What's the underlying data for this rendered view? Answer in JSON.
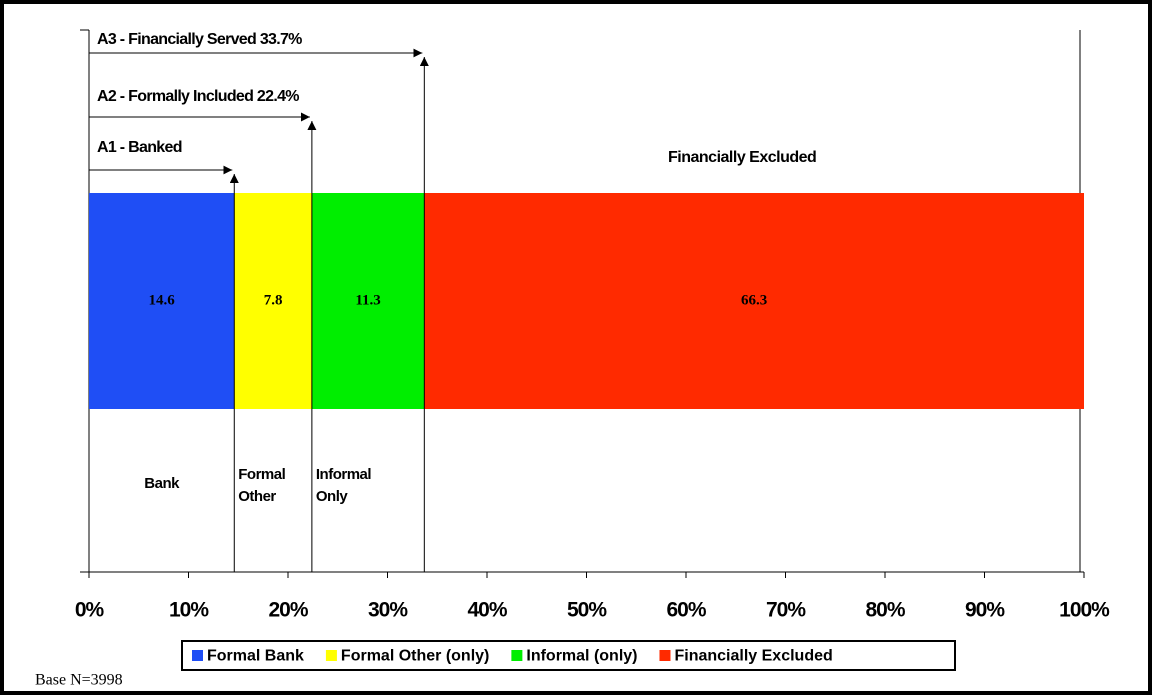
{
  "chart_data": {
    "type": "stacked-bar",
    "orientation": "horizontal",
    "series": [
      {
        "name": "Formal Bank",
        "color": "#1f4ef5",
        "values": [
          14.6
        ]
      },
      {
        "name": "Formal Other (only)",
        "color": "#ffff00",
        "values": [
          7.8
        ]
      },
      {
        "name": "Informal (only)",
        "color": "#00ee00",
        "values": [
          11.3
        ]
      },
      {
        "name": "Financially Excluded",
        "color": "#ff2a00",
        "values": [
          66.3
        ]
      }
    ],
    "segment_labels": [
      [
        "Bank"
      ],
      [
        "Formal",
        "Other"
      ],
      [
        "Informal",
        "Only"
      ],
      []
    ],
    "excluded_label": "Financially Excluded",
    "annotations": [
      {
        "text": "A1 - Banked",
        "upto": 1
      },
      {
        "text": "A2 - Formally Included 22.4%",
        "upto": 2
      },
      {
        "text": "A3 - Financially Served 33.7%",
        "upto": 3
      }
    ],
    "xlim": [
      0,
      100
    ],
    "xticks": [
      {
        "value": 0,
        "label": "0%"
      },
      {
        "value": 10,
        "label": "10%"
      },
      {
        "value": 20,
        "label": "20%"
      },
      {
        "value": 30,
        "label": "30%"
      },
      {
        "value": 40,
        "label": "40%"
      },
      {
        "value": 50,
        "label": "50%"
      },
      {
        "value": 60,
        "label": "60%"
      },
      {
        "value": 70,
        "label": "70%"
      },
      {
        "value": 80,
        "label": "80%"
      },
      {
        "value": 90,
        "label": "90%"
      },
      {
        "value": 100,
        "label": "100%"
      }
    ],
    "legend": "bottom",
    "footnote": "Base N=3998"
  }
}
